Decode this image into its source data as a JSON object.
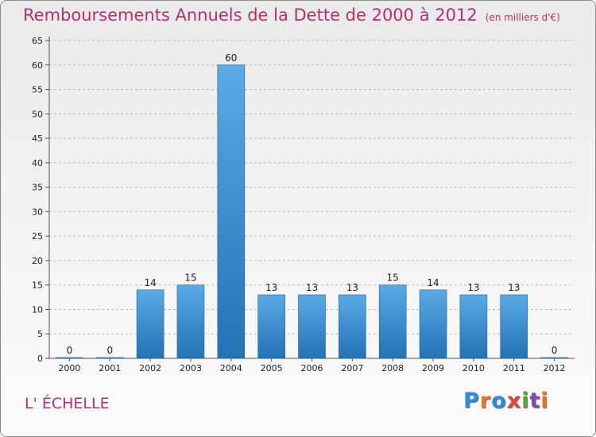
{
  "page": {
    "title": "Remboursements Annuels de la Dette de 2000 à 2012",
    "unit": "(en milliers d'€)",
    "location": "L' ÉCHELLE",
    "brand": {
      "text": "Proxiti"
    }
  },
  "chart_data": {
    "type": "bar",
    "title": "Remboursements Annuels de la Dette de 2000 à 2012",
    "subtitle": "(en milliers d'€)",
    "xlabel": "",
    "ylabel": "",
    "categories": [
      "2000",
      "2001",
      "2002",
      "2003",
      "2004",
      "2005",
      "2006",
      "2007",
      "2008",
      "2009",
      "2010",
      "2011",
      "2012"
    ],
    "values": [
      0,
      0,
      14,
      15,
      60,
      13,
      13,
      13,
      15,
      14,
      13,
      13,
      0
    ],
    "ylim": [
      0,
      65
    ],
    "yticks": [
      0,
      5,
      10,
      15,
      20,
      25,
      30,
      35,
      40,
      45,
      50,
      55,
      60,
      65
    ],
    "grid": "horizontal-dashed",
    "legend": "none",
    "colors": {
      "bar_top": "#5aaae6",
      "bar_bottom": "#2272b5",
      "grid": "#bbbbbb",
      "title": "#b5306b"
    }
  }
}
